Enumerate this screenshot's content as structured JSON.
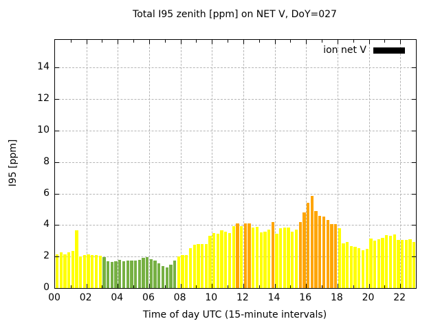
{
  "title": "Total I95 zenith [ppm] on NET V, DoY=027",
  "legend": {
    "label": "ion net V",
    "swatch_color": "#000000"
  },
  "chart_data": {
    "type": "bar",
    "title": "Total I95 zenith [ppm] on NET V, DoY=027",
    "xlabel": "Time of day UTC (15-minute intervals)",
    "ylabel": "I95 [ppm]",
    "xlim_hours": [
      0,
      23
    ],
    "ylim": [
      0,
      15.76
    ],
    "grid": "dashed, horizontal and vertical at major ticks",
    "legend_position": "top-right inside plot",
    "x_tick_labels": [
      "00",
      "02",
      "04",
      "06",
      "08",
      "10",
      "12",
      "14",
      "16",
      "18",
      "20",
      "22"
    ],
    "y_tick_labels": [
      "0",
      "2",
      "4",
      "6",
      "8",
      "10",
      "12",
      "14"
    ],
    "interval_minutes": 15,
    "times": [
      "00:00",
      "00:15",
      "00:30",
      "00:45",
      "01:00",
      "01:15",
      "01:30",
      "01:45",
      "02:00",
      "02:15",
      "02:30",
      "02:45",
      "03:00",
      "03:15",
      "03:30",
      "03:45",
      "04:00",
      "04:15",
      "04:30",
      "04:45",
      "05:00",
      "05:15",
      "05:30",
      "05:45",
      "06:00",
      "06:15",
      "06:30",
      "06:45",
      "07:00",
      "07:15",
      "07:30",
      "07:45",
      "08:00",
      "08:15",
      "08:30",
      "08:45",
      "09:00",
      "09:15",
      "09:30",
      "09:45",
      "10:00",
      "10:15",
      "10:30",
      "10:45",
      "11:00",
      "11:15",
      "11:30",
      "11:45",
      "12:00",
      "12:15",
      "12:30",
      "12:45",
      "13:00",
      "13:15",
      "13:30",
      "13:45",
      "14:00",
      "14:15",
      "14:30",
      "14:45",
      "15:00",
      "15:15",
      "15:30",
      "15:45",
      "16:00",
      "16:15",
      "16:30",
      "16:45",
      "17:00",
      "17:15",
      "17:30",
      "17:45",
      "18:00",
      "18:15",
      "18:30",
      "18:45",
      "19:00",
      "19:15",
      "19:30",
      "19:45",
      "20:00",
      "20:15",
      "20:30",
      "20:45",
      "21:00",
      "21:15",
      "21:30",
      "21:45",
      "22:00",
      "22:15",
      "22:30",
      "22:45"
    ],
    "values": [
      2.15,
      2.25,
      2.15,
      2.25,
      2.35,
      3.65,
      2.0,
      2.1,
      2.15,
      2.1,
      2.1,
      2.05,
      1.95,
      1.7,
      1.65,
      1.72,
      1.8,
      1.7,
      1.75,
      1.73,
      1.75,
      1.8,
      1.92,
      1.97,
      1.85,
      1.75,
      1.58,
      1.4,
      1.3,
      1.48,
      1.75,
      2.0,
      2.1,
      2.1,
      2.55,
      2.75,
      2.8,
      2.8,
      2.8,
      3.3,
      3.5,
      3.45,
      3.65,
      3.6,
      3.5,
      3.95,
      4.1,
      3.95,
      4.1,
      4.1,
      3.85,
      3.9,
      3.55,
      3.6,
      3.7,
      4.2,
      3.45,
      3.8,
      3.85,
      3.85,
      3.6,
      3.7,
      4.2,
      4.8,
      5.4,
      5.85,
      4.9,
      4.6,
      4.55,
      4.32,
      4.05,
      4.08,
      3.8,
      2.82,
      2.91,
      2.68,
      2.62,
      2.53,
      2.39,
      2.48,
      3.16,
      3.01,
      3.11,
      3.19,
      3.35,
      3.3,
      3.41,
      3.06,
      3.06,
      3.06,
      3.11,
      2.91
    ],
    "color_rule": {
      "description": "bar color encodes value band",
      "green_when_below": 2,
      "yellow_when_between": [
        2,
        4
      ],
      "orange_when_at_or_above": 4
    },
    "bar_colors": {
      "green": "#76b043",
      "yellow": "#ffff00",
      "orange": "#ffa500"
    }
  }
}
